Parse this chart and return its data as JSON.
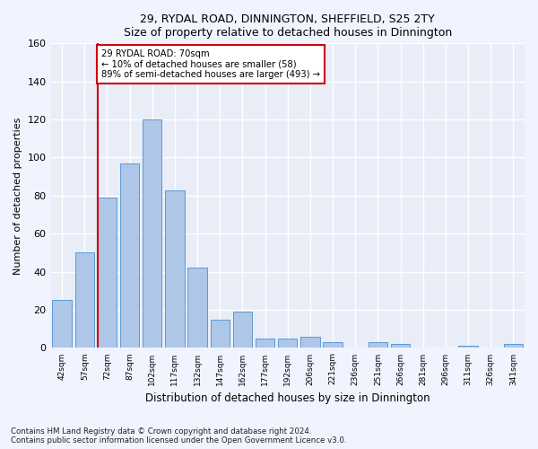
{
  "title1": "29, RYDAL ROAD, DINNINGTON, SHEFFIELD, S25 2TY",
  "title2": "Size of property relative to detached houses in Dinnington",
  "xlabel": "Distribution of detached houses by size in Dinnington",
  "ylabel": "Number of detached properties",
  "categories": [
    "42sqm",
    "57sqm",
    "72sqm",
    "87sqm",
    "102sqm",
    "117sqm",
    "132sqm",
    "147sqm",
    "162sqm",
    "177sqm",
    "192sqm",
    "206sqm",
    "221sqm",
    "236sqm",
    "251sqm",
    "266sqm",
    "281sqm",
    "296sqm",
    "311sqm",
    "326sqm",
    "341sqm"
  ],
  "values": [
    25,
    50,
    79,
    97,
    120,
    83,
    42,
    15,
    19,
    5,
    5,
    6,
    3,
    0,
    3,
    2,
    0,
    0,
    1,
    0,
    2
  ],
  "bar_color": "#aec6e8",
  "bar_edge_color": "#5b9bd5",
  "background_color": "#e8edf8",
  "grid_color": "#ffffff",
  "vline_color": "#cc0000",
  "annotation_line1": "29 RYDAL ROAD: 70sqm",
  "annotation_line2": "← 10% of detached houses are smaller (58)",
  "annotation_line3": "89% of semi-detached houses are larger (493) →",
  "annotation_box_color": "#cc0000",
  "ylim": [
    0,
    160
  ],
  "yticks": [
    0,
    20,
    40,
    60,
    80,
    100,
    120,
    140,
    160
  ],
  "footnote": "Contains HM Land Registry data © Crown copyright and database right 2024.\nContains public sector information licensed under the Open Government Licence v3.0."
}
